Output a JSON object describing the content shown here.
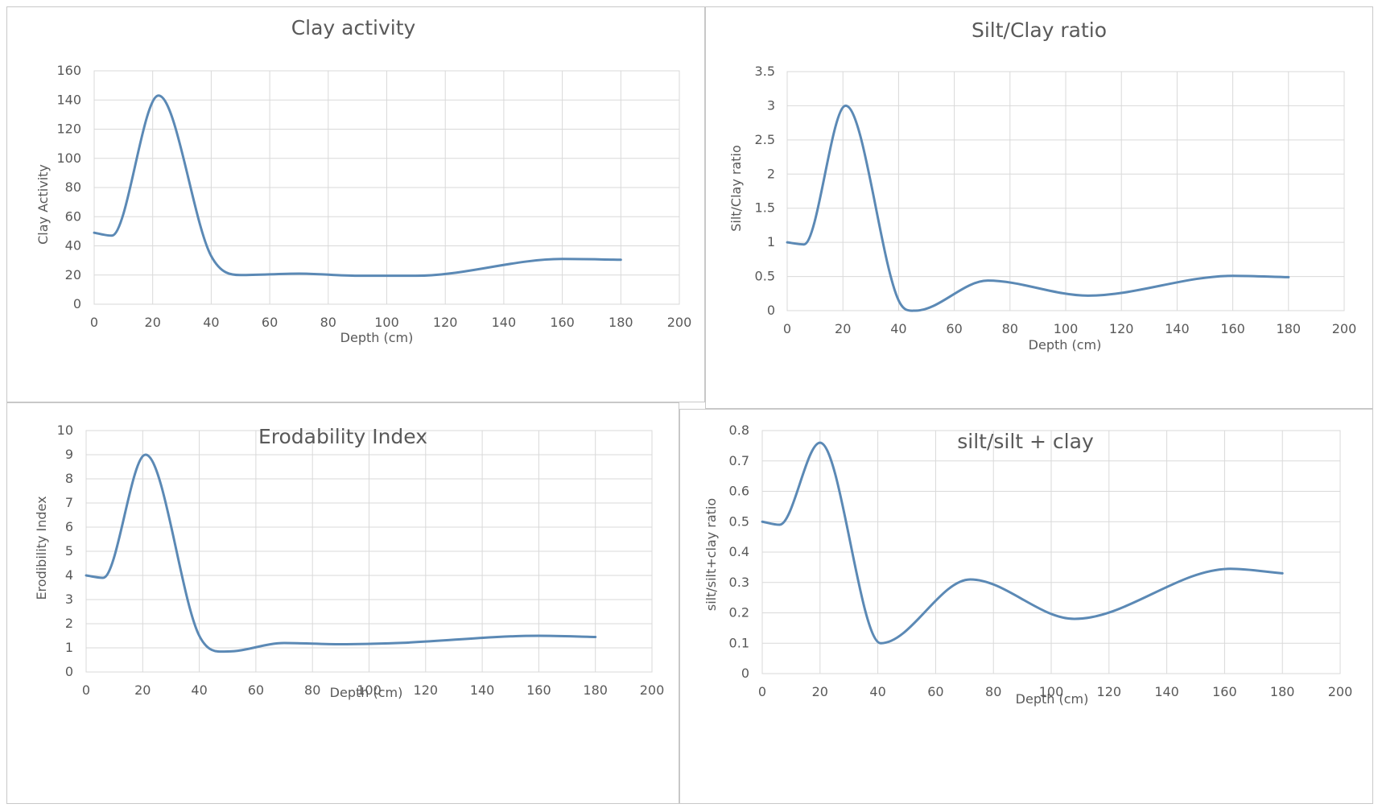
{
  "chart_data": [
    {
      "type": "line",
      "title": "Clay activity",
      "xlabel": "Depth (cm)",
      "ylabel": "Clay Activity",
      "xlim": [
        0,
        200
      ],
      "ylim": [
        0,
        160
      ],
      "xticks": [
        "0",
        "20",
        "40",
        "60",
        "80",
        "100",
        "120",
        "140",
        "160",
        "180",
        "200"
      ],
      "yticks": [
        "0",
        "20",
        "40",
        "60",
        "80",
        "100",
        "120",
        "140",
        "160"
      ],
      "grid": true,
      "series": [
        {
          "color": "#5b89b5",
          "x": [
            0,
            6,
            22,
            40,
            50,
            70,
            90,
            110,
            160,
            180
          ],
          "y": [
            49,
            47,
            143,
            33,
            20,
            21,
            19.5,
            19.5,
            31,
            30.5
          ]
        }
      ]
    },
    {
      "type": "line",
      "title": "Silt/Clay ratio",
      "xlabel": "Depth (cm)",
      "ylabel": "Silt/Clay ratio",
      "xlim": [
        0,
        200
      ],
      "ylim": [
        0,
        3.5
      ],
      "xticks": [
        "0",
        "20",
        "40",
        "60",
        "80",
        "100",
        "120",
        "140",
        "160",
        "180",
        "200"
      ],
      "yticks": [
        "0",
        "0.5",
        "1",
        "1.5",
        "2",
        "2.5",
        "3",
        "3.5"
      ],
      "grid": true,
      "series": [
        {
          "color": "#5b89b5",
          "x": [
            0,
            6,
            21,
            40,
            46,
            72,
            108,
            160,
            180
          ],
          "y": [
            1.0,
            0.97,
            3.0,
            0.15,
            0.0,
            0.44,
            0.22,
            0.51,
            0.49
          ]
        }
      ]
    },
    {
      "type": "line",
      "title": "Erodability Index",
      "xlabel": "Depth (cm)",
      "ylabel": "Erodibility Index",
      "xlim": [
        0,
        200
      ],
      "ylim": [
        0,
        10
      ],
      "xticks": [
        "0",
        "20",
        "40",
        "60",
        "80",
        "100",
        "120",
        "140",
        "160",
        "180",
        "200"
      ],
      "yticks": [
        "0",
        "1",
        "2",
        "3",
        "4",
        "5",
        "6",
        "7",
        "8",
        "9",
        "10"
      ],
      "grid": true,
      "series": [
        {
          "color": "#5b89b5",
          "x": [
            0,
            6,
            21,
            40,
            50,
            70,
            90,
            110,
            160,
            180
          ],
          "y": [
            4.0,
            3.9,
            9.0,
            1.5,
            0.85,
            1.2,
            1.15,
            1.2,
            1.5,
            1.45
          ]
        }
      ]
    },
    {
      "type": "line",
      "title": "silt/silt + clay",
      "xlabel": "Depth (cm)",
      "ylabel": "silt/silt+clay ratio",
      "xlim": [
        0,
        200
      ],
      "ylim": [
        0,
        0.8
      ],
      "xticks": [
        "0",
        "20",
        "40",
        "60",
        "80",
        "100",
        "120",
        "140",
        "160",
        "180",
        "200"
      ],
      "yticks": [
        "0",
        "0.1",
        "0.2",
        "0.3",
        "0.4",
        "0.5",
        "0.6",
        "0.7",
        "0.8"
      ],
      "grid": true,
      "series": [
        {
          "color": "#5b89b5",
          "x": [
            0,
            6,
            20,
            41,
            72,
            108,
            162,
            180
          ],
          "y": [
            0.5,
            0.49,
            0.76,
            0.1,
            0.31,
            0.18,
            0.345,
            0.33
          ]
        }
      ]
    }
  ]
}
